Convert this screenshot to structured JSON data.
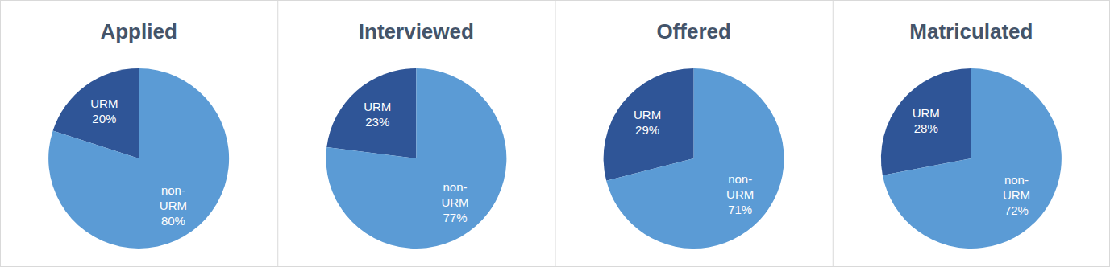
{
  "chart_data": [
    {
      "type": "pie",
      "title": "Applied",
      "categories": [
        "URM",
        "non-URM"
      ],
      "values": [
        20,
        80
      ],
      "value_labels": [
        "20%",
        "80%"
      ],
      "colors": [
        "#2f5597",
        "#5b9bd5"
      ],
      "data_labels": true
    },
    {
      "type": "pie",
      "title": "Interviewed",
      "categories": [
        "URM",
        "non-URM"
      ],
      "values": [
        23,
        77
      ],
      "value_labels": [
        "23%",
        "77%"
      ],
      "colors": [
        "#2f5597",
        "#5b9bd5"
      ],
      "data_labels": true
    },
    {
      "type": "pie",
      "title": "Offered",
      "categories": [
        "URM",
        "non-URM"
      ],
      "values": [
        29,
        71
      ],
      "value_labels": [
        "29%",
        "71%"
      ],
      "colors": [
        "#2f5597",
        "#5b9bd5"
      ],
      "data_labels": true
    },
    {
      "type": "pie",
      "title": "Matriculated",
      "categories": [
        "URM",
        "non-URM"
      ],
      "values": [
        28,
        72
      ],
      "value_labels": [
        "28%",
        "72%"
      ],
      "colors": [
        "#2f5597",
        "#5b9bd5"
      ],
      "data_labels": true
    }
  ]
}
